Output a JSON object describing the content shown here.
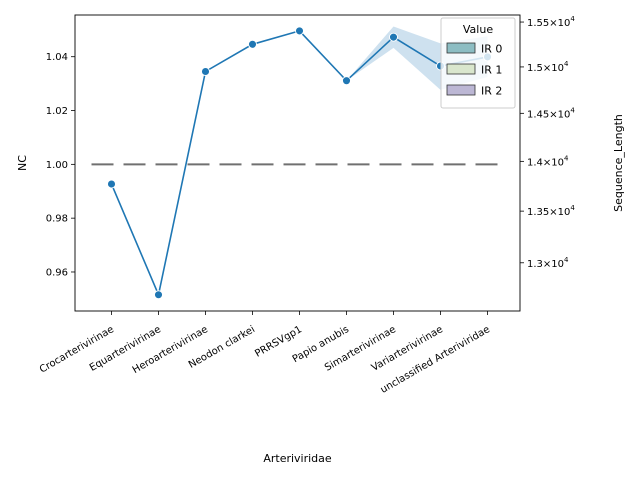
{
  "chart_data": {
    "type": "line",
    "xlabel": "Arteriviridae",
    "ylabel_left": "NC",
    "ylabel_right": "Sequence_Length",
    "categories": [
      "Crocarterivirinae",
      "Equarterivirinae",
      "Heroarterivirinae",
      "Neodon clarkei",
      "PRRSVgp1",
      "Papio anubis",
      "Simarterivirinae",
      "Variarterivirinae",
      "unclassified Arteriviridae"
    ],
    "left_axis": {
      "ylim": [
        0.9455,
        1.0555
      ],
      "ticks": [
        0.96,
        0.98,
        1.0,
        1.02,
        1.04
      ],
      "tick_labels": [
        "0.96",
        "0.98",
        "1.00",
        "1.02",
        "1.04"
      ]
    },
    "right_axis": {
      "scale": "log",
      "ylim": [
        12550,
        15580
      ],
      "ticks": [
        13000,
        13500,
        14000,
        14500,
        15000,
        15500
      ],
      "tick_labels": [
        {
          "mantissa": "1.3",
          "exp": "4"
        },
        {
          "mantissa": "1.35",
          "exp": "4"
        },
        {
          "mantissa": "1.4",
          "exp": "4"
        },
        {
          "mantissa": "1.45",
          "exp": "4"
        },
        {
          "mantissa": "1.5",
          "exp": "4"
        },
        {
          "mantissa": "1.55",
          "exp": "4"
        }
      ],
      "tick_prefix": "×10"
    },
    "series": [
      {
        "name": "Sequence_Length",
        "axis": "right",
        "style": "solid line with circle markers",
        "color": "#1f77b4",
        "x": [
          "Crocarterivirinae",
          "Equarterivirinae",
          "Heroarterivirinae",
          "Neodon clarkei",
          "PRRSVgp1",
          "Papio anubis",
          "Simarterivirinae",
          "Variarterivirinae",
          "unclassified Arteriviridae"
        ],
        "values": [
          13770,
          12700,
          14950,
          15250,
          15400,
          14850,
          15330,
          15010,
          15110
        ],
        "ci": [
          {
            "x": "Papio anubis",
            "low": 14850,
            "high": 14850
          },
          {
            "x": "Simarterivirinae",
            "low": 15210,
            "high": 15450
          },
          {
            "x": "Variarterivirinae",
            "low": 14750,
            "high": 15260
          },
          {
            "x": "unclassified Arteriviridae",
            "low": 14890,
            "high": 15340
          }
        ],
        "ci_color": "#a6c8e2"
      },
      {
        "name": "NC",
        "axis": "left",
        "style": "dashed gray line",
        "color": "#707070",
        "values": [
          1,
          1,
          1,
          1,
          1,
          1,
          1,
          1,
          1
        ]
      }
    ],
    "legend": {
      "title": "Value",
      "position": "top-right",
      "entries": [
        {
          "label": "IR 0",
          "color": "#79b3b8"
        },
        {
          "label": "IR 1",
          "color": "#d4e3c4"
        },
        {
          "label": "IR 2",
          "color": "#b0aacd"
        }
      ]
    },
    "grid": false
  }
}
